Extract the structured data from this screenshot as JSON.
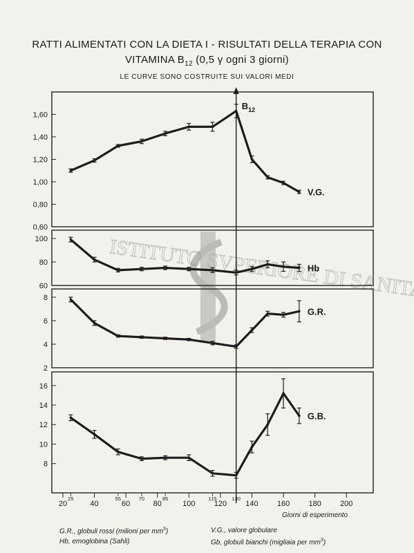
{
  "title": {
    "line1": "RATTI ALIMENTATI CON LA DIETA I - RISULTATI DELLA TERAPIA CON",
    "line2": "VITAMINA B12 (0,5 γ ogni 3 giorni)",
    "line3": "LE CURVE SONO COSTRUITE SUI VALORI MEDI"
  },
  "annotation_b12": "B12",
  "watermark": "ISTITUTO SVPERIORE DI SANITA",
  "legend": {
    "gr": "G.R., globuli rossi (milioni per mm3)",
    "hb": "Hb, emoglobina (Sahli)",
    "vg": "V.G., valore globulare",
    "gb": "Gb, globuli bianchi (migliaia per mm3)"
  },
  "chart_data": [
    {
      "type": "line",
      "series": [
        {
          "name": "V.G.",
          "x": [
            25,
            40,
            55,
            70,
            85,
            100,
            115,
            130,
            140,
            150,
            160,
            170
          ],
          "y": [
            1.1,
            1.19,
            1.32,
            1.36,
            1.43,
            1.49,
            1.49,
            1.63,
            1.2,
            1.04,
            0.99,
            0.91
          ],
          "err": [
            0.015,
            0.015,
            0.012,
            0.02,
            0.02,
            0.03,
            0.04,
            0.06,
            0.03,
            0.015,
            0.015,
            0.015
          ]
        }
      ],
      "ylim": [
        0.6,
        1.8
      ],
      "yticks": [
        "0,60",
        "0,80",
        "1,00",
        "1,20",
        "1,40",
        "1,60"
      ],
      "ytick_values": [
        0.6,
        0.8,
        1.0,
        1.2,
        1.4,
        1.6
      ]
    },
    {
      "type": "line",
      "series": [
        {
          "name": "Hb",
          "x": [
            25,
            40,
            55,
            70,
            85,
            100,
            115,
            130,
            140,
            150,
            160,
            170
          ],
          "y": [
            99,
            82,
            73,
            74,
            75,
            74,
            73,
            71,
            74,
            78,
            76,
            75
          ],
          "err": [
            2,
            2,
            1.5,
            1.5,
            1.5,
            1.5,
            2,
            2,
            2,
            3,
            4,
            3
          ]
        }
      ],
      "ylim": [
        60,
        107
      ],
      "yticks": [
        "60",
        "80",
        "100"
      ],
      "ytick_values": [
        60,
        80,
        100
      ]
    },
    {
      "type": "line",
      "series": [
        {
          "name": "G.R.",
          "x": [
            25,
            40,
            55,
            70,
            85,
            100,
            115,
            130,
            140,
            150,
            160,
            170
          ],
          "y": [
            7.8,
            5.8,
            4.7,
            4.6,
            4.5,
            4.4,
            4.1,
            3.8,
            5.2,
            6.6,
            6.5,
            6.8
          ],
          "err": [
            0.2,
            0.2,
            0.1,
            0.1,
            0.1,
            0.1,
            0.15,
            0.15,
            0.2,
            0.2,
            0.2,
            0.9
          ]
        }
      ],
      "ylim": [
        2,
        8.7
      ],
      "yticks": [
        "2",
        "4",
        "6",
        "8"
      ],
      "ytick_values": [
        2,
        4,
        6,
        8
      ]
    },
    {
      "type": "line",
      "series": [
        {
          "name": "G.B.",
          "x": [
            25,
            40,
            55,
            70,
            85,
            100,
            115,
            130,
            140,
            150,
            160,
            170
          ],
          "y": [
            12.7,
            11.0,
            9.2,
            8.5,
            8.6,
            8.6,
            7.0,
            6.8,
            9.7,
            12.0,
            15.2,
            12.9
          ],
          "err": [
            0.3,
            0.4,
            0.3,
            0.2,
            0.2,
            0.3,
            0.3,
            0.3,
            0.6,
            1.1,
            1.5,
            0.8
          ]
        }
      ],
      "ylim": [
        5,
        17.4
      ],
      "yticks": [
        "8",
        "10",
        "12",
        "14",
        "16"
      ],
      "ytick_values": [
        8,
        10,
        12,
        14,
        16
      ],
      "xlabel": "Giorni di esperimento",
      "xticks_major": [
        "20",
        "40",
        "60",
        "80",
        "100",
        "120",
        "140",
        "160",
        "180",
        "200"
      ],
      "xticks_major_values": [
        20,
        40,
        60,
        80,
        100,
        120,
        140,
        160,
        180,
        200
      ],
      "xticks_minor": [
        "25",
        "55",
        "70",
        "85",
        "115",
        "130"
      ],
      "xticks_minor_values": [
        25,
        55,
        70,
        85,
        115,
        130
      ],
      "xlim": [
        13,
        217
      ]
    }
  ]
}
